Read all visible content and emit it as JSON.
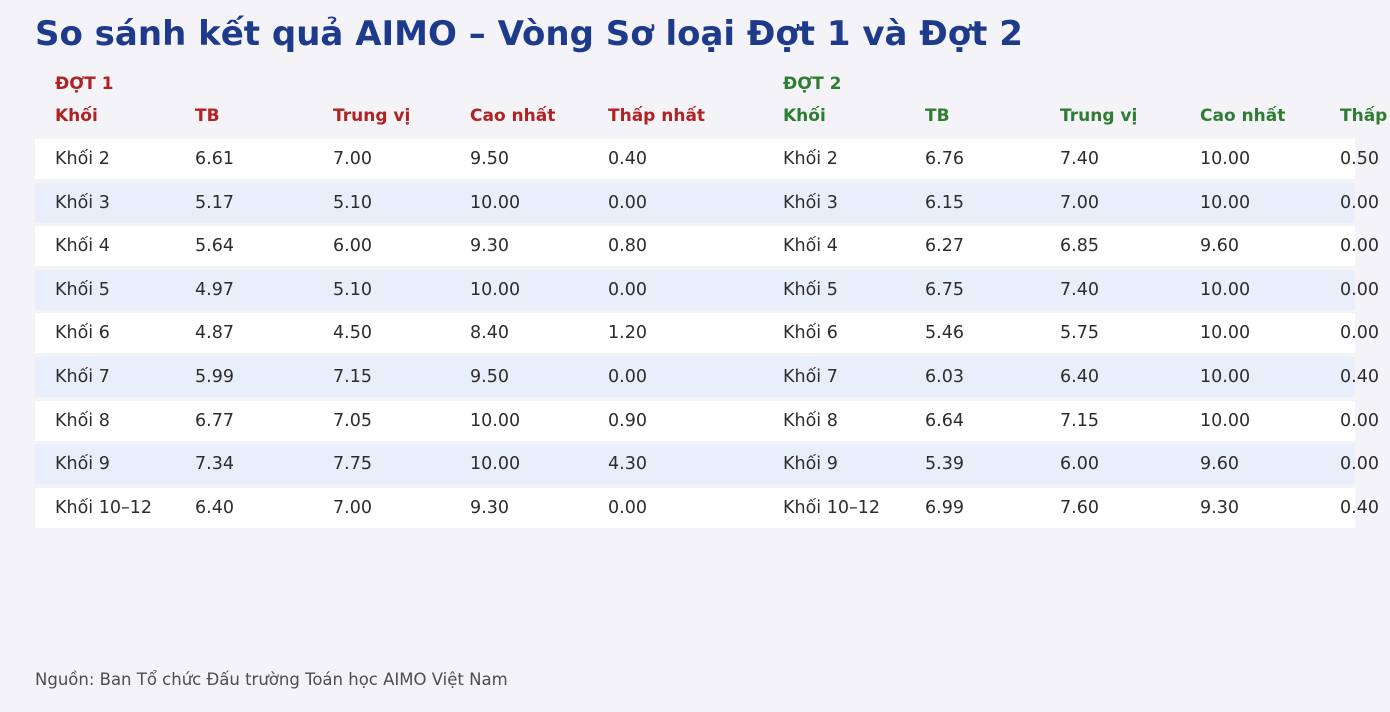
{
  "title": "So sánh kết quả AIMO – Vòng Sơ loại Đợt 1 và Đợt 2",
  "source_note": "Nguồn: Ban Tổ chức Đấu trường Toán học AIMO Việt Nam",
  "colors": {
    "page_background": "#f4f4f8",
    "title_text": "#1e3a8a",
    "dot1_accent": "#b22222",
    "dot2_accent": "#2e7d32",
    "row_even": "#ffffff",
    "row_odd": "#e9effa",
    "cell_text": "#2d2d2d",
    "footer_text": "#4d4d4d"
  },
  "chart_data": {
    "type": "table",
    "title": "So sánh kết quả AIMO – Vòng Sơ loại Đợt 1 và Đợt 2",
    "source_note": "Nguồn: Ban Tổ chức Đấu trường Toán học AIMO Việt Nam",
    "groups": [
      {
        "label": "ĐỢT 1",
        "accent_color": "#b22222",
        "columns": [
          "Khối",
          "TB",
          "Trung vị",
          "Cao nhất",
          "Thấp nhất"
        ],
        "rows": [
          [
            "Khối 2",
            "6.61",
            "7.00",
            "9.50",
            "0.40"
          ],
          [
            "Khối 3",
            "5.17",
            "5.10",
            "10.00",
            "0.00"
          ],
          [
            "Khối 4",
            "5.64",
            "6.00",
            "9.30",
            "0.80"
          ],
          [
            "Khối 5",
            "4.97",
            "5.10",
            "10.00",
            "0.00"
          ],
          [
            "Khối 6",
            "4.87",
            "4.50",
            "8.40",
            "1.20"
          ],
          [
            "Khối 7",
            "5.99",
            "7.15",
            "9.50",
            "0.00"
          ],
          [
            "Khối 8",
            "6.77",
            "7.05",
            "10.00",
            "0.90"
          ],
          [
            "Khối 9",
            "7.34",
            "7.75",
            "10.00",
            "4.30"
          ],
          [
            "Khối 10–12",
            "6.40",
            "7.00",
            "9.30",
            "0.00"
          ]
        ]
      },
      {
        "label": "ĐỢT 2",
        "accent_color": "#2e7d32",
        "columns": [
          "Khối",
          "TB",
          "Trung vị",
          "Cao nhất",
          "Thấp nhất"
        ],
        "rows": [
          [
            "Khối 2",
            "6.76",
            "7.40",
            "10.00",
            "0.50"
          ],
          [
            "Khối 3",
            "6.15",
            "7.00",
            "10.00",
            "0.00"
          ],
          [
            "Khối 4",
            "6.27",
            "6.85",
            "9.60",
            "0.00"
          ],
          [
            "Khối 5",
            "6.75",
            "7.40",
            "10.00",
            "0.00"
          ],
          [
            "Khối 6",
            "5.46",
            "5.75",
            "10.00",
            "0.00"
          ],
          [
            "Khối 7",
            "6.03",
            "6.40",
            "10.00",
            "0.40"
          ],
          [
            "Khối 8",
            "6.64",
            "7.15",
            "10.00",
            "0.00"
          ],
          [
            "Khối 9",
            "5.39",
            "6.00",
            "9.60",
            "0.00"
          ],
          [
            "Khối 10–12",
            "6.99",
            "7.60",
            "9.30",
            "0.40"
          ]
        ]
      }
    ]
  }
}
